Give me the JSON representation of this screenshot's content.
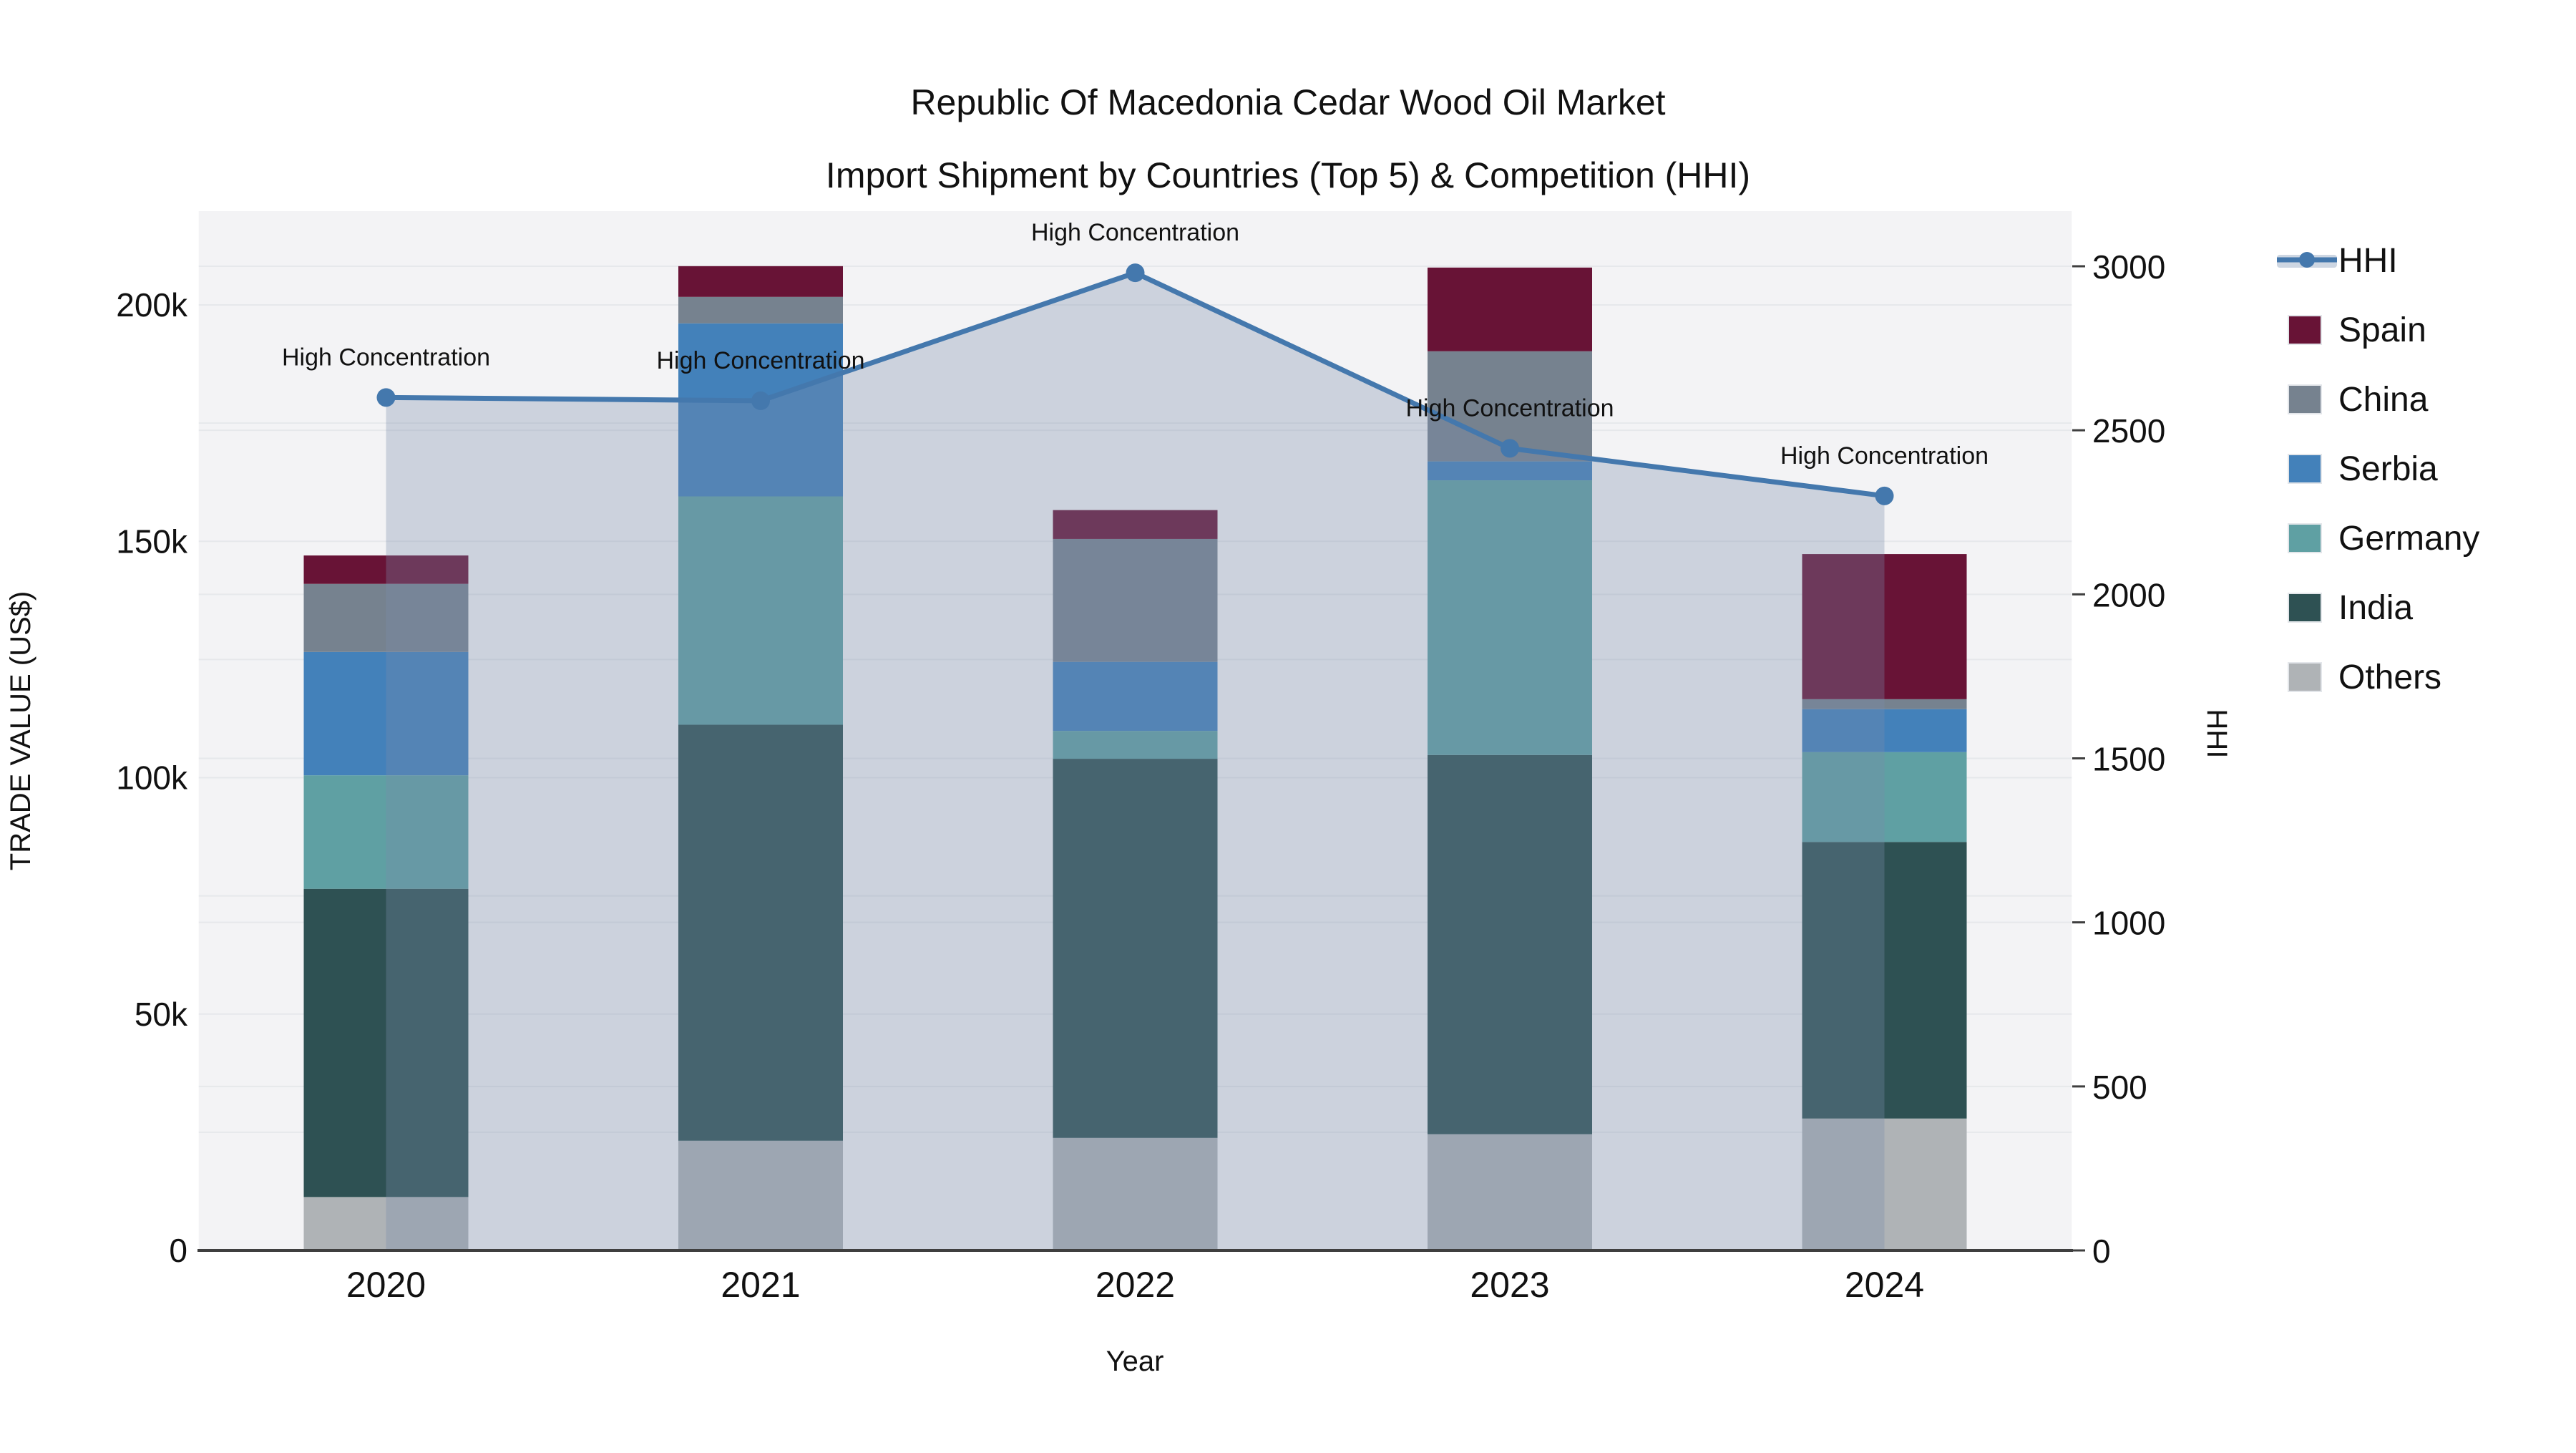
{
  "title_line1": "Republic Of Macedonia Cedar Wood Oil Market",
  "title_line2": "Import Shipment by Countries (Top 5) & Competition (HHI)",
  "axes": {
    "x_title": "Year",
    "y_left_title": "TRADE VALUE (US$)",
    "y_right_title": "HHI",
    "y_left_ticks": [
      {
        "value": 0,
        "label": "0"
      },
      {
        "value": 50000,
        "label": "50k"
      },
      {
        "value": 100000,
        "label": "100k"
      },
      {
        "value": 150000,
        "label": "150k"
      },
      {
        "value": 200000,
        "label": "200k"
      }
    ],
    "y_right_ticks": [
      {
        "value": 0,
        "label": "0"
      },
      {
        "value": 500,
        "label": "500"
      },
      {
        "value": 1000,
        "label": "1000"
      },
      {
        "value": 1500,
        "label": "1500"
      },
      {
        "value": 2000,
        "label": "2000"
      },
      {
        "value": 2500,
        "label": "2500"
      },
      {
        "value": 3000,
        "label": "3000"
      }
    ]
  },
  "annotations": {
    "high_concentration": "High Concentration"
  },
  "legend": {
    "items": [
      "HHI",
      "Spain",
      "China",
      "Serbia",
      "Germany",
      "India",
      "Others"
    ]
  },
  "colors": {
    "hhi_line": "#4478AD",
    "area_fill": "rgba(122,140,170,0.32)",
    "legend_band": "#CDD6E2",
    "plot_bg": "#F3F3F5",
    "grid": "#E6E8EB",
    "axis_line": "#3F3F3F"
  },
  "chart_data": {
    "type": "bar",
    "subtype": "stacked-bars-with-line",
    "title": "Republic Of Macedonia Cedar Wood Oil Market Import Shipment by Countries (Top 5) & Competition (HHI)",
    "xlabel": "Year",
    "ylabel_left": "TRADE VALUE (US$)",
    "ylabel_right": "HHI",
    "ylim_left": [
      0,
      220000
    ],
    "ylim_right": [
      0,
      3170
    ],
    "grid": true,
    "legend_position": "right",
    "categories": [
      "2020",
      "2021",
      "2022",
      "2023",
      "2024"
    ],
    "series": [
      {
        "name": "Spain",
        "color": "#681336",
        "values": [
          6000,
          6500,
          6100,
          17700,
          30700
        ]
      },
      {
        "name": "China",
        "color": "#76828F",
        "values": [
          14400,
          5600,
          26000,
          23300,
          2100
        ]
      },
      {
        "name": "Serbia",
        "color": "#4381BA",
        "values": [
          26100,
          36600,
          14600,
          4000,
          9100
        ]
      },
      {
        "name": "Germany",
        "color": "#5FA0A3",
        "values": [
          24000,
          48300,
          5900,
          58100,
          19000
        ]
      },
      {
        "name": "India",
        "color": "#2E5153",
        "values": [
          65200,
          88000,
          80200,
          80200,
          58500
        ]
      },
      {
        "name": "Others",
        "color": "#AFB3B6",
        "values": [
          11300,
          23200,
          23800,
          24600,
          27900
        ]
      }
    ],
    "stack_order_bottom_to_top": [
      "Others",
      "India",
      "Germany",
      "Serbia",
      "China",
      "Spain"
    ],
    "line_series": {
      "name": "HHI",
      "axis": "right",
      "values": [
        2600,
        2590,
        2980,
        2445,
        2300
      ],
      "point_annotations": [
        "High Concentration",
        "High Concentration",
        "High Concentration",
        "High Concentration",
        "High Concentration"
      ]
    }
  }
}
